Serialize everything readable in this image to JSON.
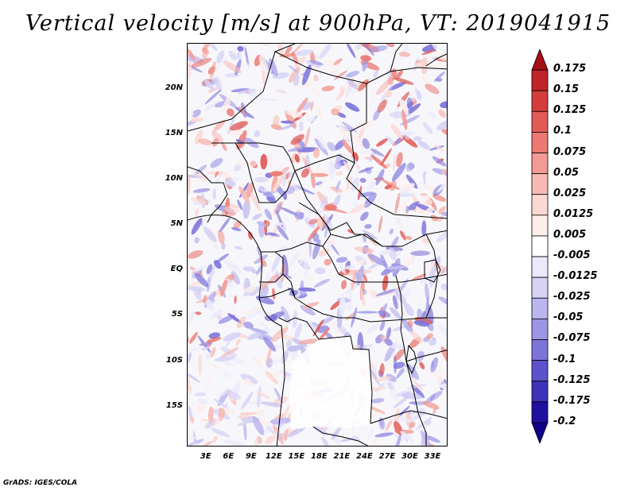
{
  "title": "Vertical velocity [m/s] at 900hPa, VT: 2019041915",
  "footer": "GrADS: IGES/COLA",
  "map": {
    "lat_labels": [
      "20N",
      "15N",
      "10N",
      "5N",
      "EQ",
      "5S",
      "10S",
      "15S"
    ],
    "lon_labels": [
      "3E",
      "6E",
      "9E",
      "12E",
      "15E",
      "18E",
      "21E",
      "24E",
      "27E",
      "30E",
      "33E"
    ],
    "lat_values": [
      20,
      15,
      10,
      5,
      0,
      -5,
      -10,
      -15
    ],
    "lon_values": [
      3,
      6,
      9,
      12,
      15,
      18,
      21,
      24,
      27,
      30,
      33
    ],
    "lon_range": [
      0.5,
      35
    ],
    "lat_range": [
      -19.5,
      25
    ]
  },
  "colorbar": {
    "labels": [
      "0.175",
      "0.15",
      "0.125",
      "0.1",
      "0.075",
      "0.05",
      "0.025",
      "0.0125",
      "0.005",
      "-0.005",
      "-0.0125",
      "-0.025",
      "-0.05",
      "-0.075",
      "-0.1",
      "-0.125",
      "-0.175",
      "-0.2"
    ],
    "colors": [
      "#a50f15",
      "#c0242a",
      "#d43d3d",
      "#e05a56",
      "#ea7a73",
      "#f29b94",
      "#f7bbb5",
      "#fbd8d4",
      "#fdeeec",
      "#ffffff",
      "#eceafa",
      "#d6d3f5",
      "#bbb6ee",
      "#9d96e5",
      "#7d74da",
      "#5d52cc",
      "#3d33b8",
      "#2010a0",
      "#10008a"
    ]
  }
}
